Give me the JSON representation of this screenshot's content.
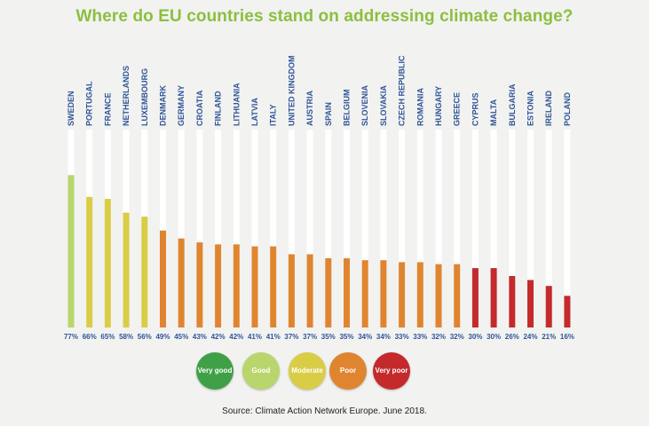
{
  "colors": {
    "title": "#8cbf3f",
    "text": "#2f5597",
    "track": "#ffffff",
    "very_good": "#3fa048",
    "good": "#b9d66c",
    "moderate": "#d9cd45",
    "poor": "#e0852f",
    "very_poor": "#c42a2c"
  },
  "chart_data": {
    "type": "bar",
    "title": "Where do EU countries stand on addressing climate change?",
    "ylim": [
      0,
      100
    ],
    "categories": [
      "SWEDEN",
      "PORTUGAL",
      "FRANCE",
      "NETHERLANDS",
      "LUXEMBOURG",
      "DENMARK",
      "GERMANY",
      "CROATIA",
      "FINLAND",
      "LITHUANIA",
      "LATVIA",
      "ITALY",
      "UNITED KINGDOM",
      "AUSTRIA",
      "SPAIN",
      "BELGIUM",
      "SLOVENIA",
      "SLOVAKIA",
      "CZECH REPUBLIC",
      "ROMANIA",
      "HUNGARY",
      "GREECE",
      "CYPRUS",
      "MALTA",
      "BULGARIA",
      "ESTONIA",
      "IRELAND",
      "POLAND"
    ],
    "values": [
      77,
      66,
      65,
      58,
      56,
      49,
      45,
      43,
      42,
      42,
      41,
      41,
      37,
      37,
      35,
      35,
      34,
      34,
      33,
      33,
      32,
      32,
      30,
      30,
      26,
      24,
      21,
      16
    ],
    "value_labels": [
      "77%",
      "66%",
      "65%",
      "58%",
      "56%",
      "49%",
      "45%",
      "43%",
      "42%",
      "42%",
      "41%",
      "41%",
      "37%",
      "37%",
      "35%",
      "35%",
      "34%",
      "34%",
      "33%",
      "33%",
      "32%",
      "32%",
      "30%",
      "30%",
      "26%",
      "24%",
      "21%",
      "16%"
    ],
    "ratings": [
      "good",
      "moderate",
      "moderate",
      "moderate",
      "moderate",
      "poor",
      "poor",
      "poor",
      "poor",
      "poor",
      "poor",
      "poor",
      "poor",
      "poor",
      "poor",
      "poor",
      "poor",
      "poor",
      "poor",
      "poor",
      "poor",
      "poor",
      "very_poor",
      "very_poor",
      "very_poor",
      "very_poor",
      "very_poor",
      "very_poor"
    ]
  },
  "legend": [
    {
      "key": "very_good",
      "label": "Very good"
    },
    {
      "key": "good",
      "label": "Good"
    },
    {
      "key": "moderate",
      "label": "Moderate"
    },
    {
      "key": "poor",
      "label": "Poor"
    },
    {
      "key": "very_poor",
      "label": "Very poor"
    }
  ],
  "source": "Source: Climate Action Network Europe. June 2018."
}
